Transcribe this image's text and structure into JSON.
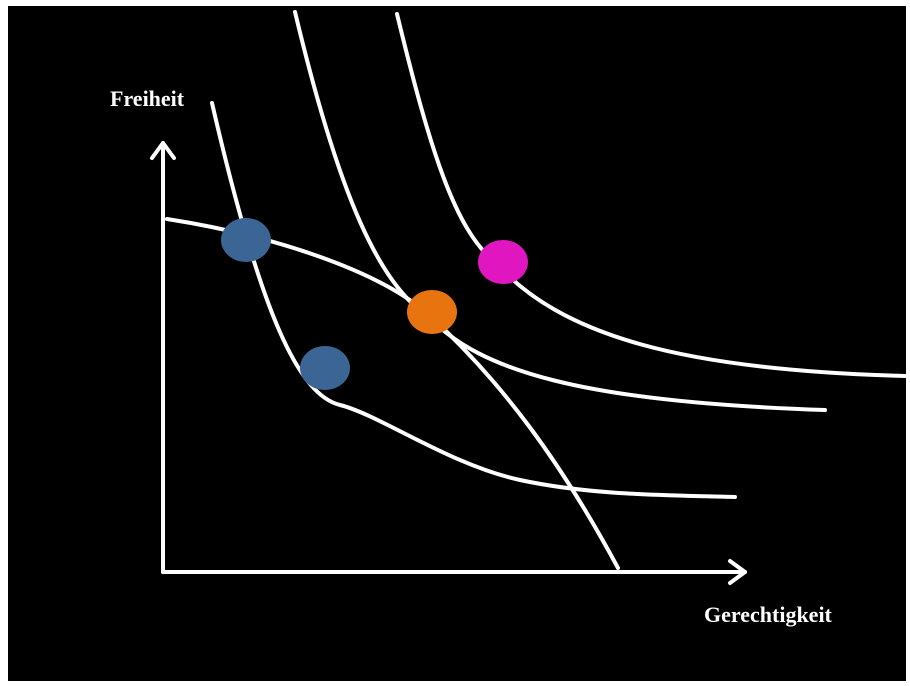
{
  "diagram": {
    "y_axis_label": "Freiheit",
    "x_axis_label": "Gerechtigkeit"
  },
  "colors": {
    "background": "#000000",
    "lines": "#ffffff",
    "point_blue": "#3a6595",
    "point_orange": "#e8740f",
    "point_magenta": "#e016c0"
  },
  "points": [
    {
      "name": "blue",
      "color": "#3a6595"
    },
    {
      "name": "blue",
      "color": "#3a6595"
    },
    {
      "name": "orange",
      "color": "#e8740f"
    },
    {
      "name": "magenta",
      "color": "#e016c0"
    }
  ]
}
